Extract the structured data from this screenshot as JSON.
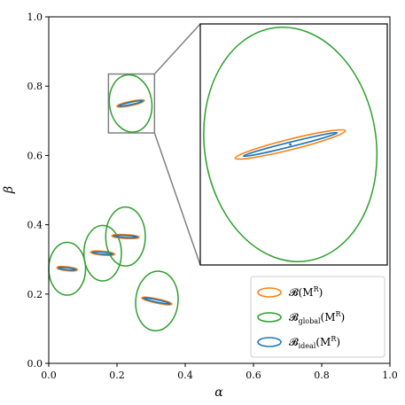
{
  "chart_data": {
    "type": "scatter",
    "xlabel": "α",
    "ylabel": "β",
    "xlim": [
      0.0,
      1.0
    ],
    "ylim": [
      0.0,
      1.0
    ],
    "xticks": [
      "0.0",
      "0.2",
      "0.4",
      "0.6",
      "0.8",
      "1.0"
    ],
    "yticks": [
      "0.0",
      "0.2",
      "0.4",
      "0.6",
      "0.8",
      "1.0"
    ],
    "grid": false,
    "legend_position": "bottom-right",
    "colors": {
      "orange": "#ff7f0e",
      "green": "#2ca02c",
      "blue": "#1f77b4",
      "gray": "#808080"
    },
    "legend": [
      {
        "main": "𝓑(M",
        "sup": "R",
        "sub": "",
        "tail": ")",
        "color": "#ff7f0e"
      },
      {
        "main": "𝓑",
        "sup": "R",
        "sub": "global",
        "tail": ")",
        "color": "#2ca02c"
      },
      {
        "main": "𝓑",
        "sup": "R",
        "sub": "ideal",
        "tail": ")",
        "color": "#1f77b4"
      }
    ],
    "regions": [
      {
        "center": [
          0.24,
          0.75
        ],
        "green": [
          0.062,
          0.083,
          8
        ],
        "orange": [
          0.041,
          0.0062,
          12
        ],
        "blue": [
          0.036,
          0.0035,
          12
        ]
      },
      {
        "center": [
          0.054,
          0.273
        ],
        "green": [
          0.054,
          0.076,
          0
        ],
        "orange": [
          0.03,
          0.0055,
          -6
        ],
        "blue": [
          0.026,
          0.003,
          -6
        ]
      },
      {
        "center": [
          0.158,
          0.318
        ],
        "green": [
          0.055,
          0.08,
          0
        ],
        "orange": [
          0.035,
          0.0055,
          -5
        ],
        "blue": [
          0.03,
          0.003,
          -5
        ]
      },
      {
        "center": [
          0.225,
          0.366
        ],
        "green": [
          0.058,
          0.085,
          0
        ],
        "orange": [
          0.04,
          0.0055,
          -3
        ],
        "blue": [
          0.035,
          0.003,
          -3
        ]
      },
      {
        "center": [
          0.317,
          0.18
        ],
        "green": [
          0.062,
          0.086,
          -5
        ],
        "orange": [
          0.045,
          0.006,
          -12
        ],
        "blue": [
          0.04,
          0.0035,
          -12
        ]
      }
    ],
    "zoom_window": {
      "xlim": [
        0.175,
        0.31
      ],
      "ylim": [
        0.665,
        0.835
      ]
    },
    "zoom_region_index": 0
  }
}
